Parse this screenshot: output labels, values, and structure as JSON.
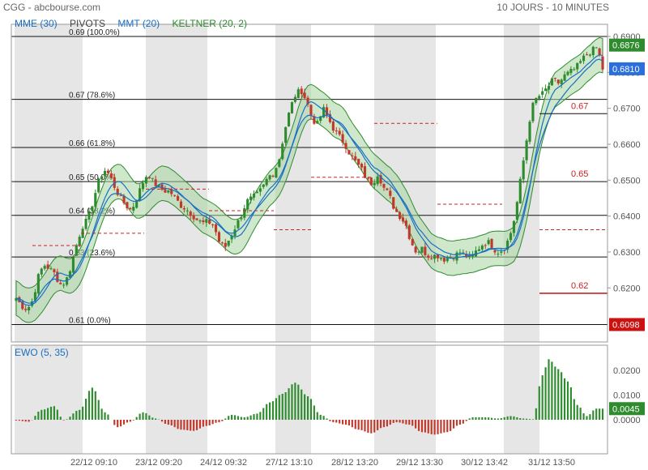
{
  "header": {
    "symbol": "CGG - abcbourse.com",
    "period": "10 JOURS - 10 MINUTES"
  },
  "legend": {
    "mme": "MME (30)",
    "pivots": "PIVOTS",
    "mmt": "MMT (20)",
    "keltner": "KELTNER (20, 2)"
  },
  "colors": {
    "mme": "#1a6fc4",
    "pivots": "#555555",
    "mmt": "#1a6fc4",
    "keltner": "#2e8b2e",
    "up": "#2e8b2e",
    "down": "#c0392b",
    "band_fill": "#a8d5a0",
    "shade": "#e6e6e6",
    "pivot": "#cc2222"
  },
  "ewo": {
    "label": "EWO (5, 35)"
  },
  "chart_data": [
    {
      "type": "candlestick",
      "ylim": [
        0.6098,
        0.69
      ],
      "y_ticks": [
        "0.6900",
        "0.6800",
        "0.6700",
        "0.6600",
        "0.6500",
        "0.6400",
        "0.6300",
        "0.6200"
      ],
      "x_ticks": [
        "22/12 09:10",
        "23/12 09:20",
        "24/12 09:32",
        "27/12 13:10",
        "28/12 13:20",
        "29/12 13:30",
        "30/12 13:42",
        "31/12 13:50"
      ],
      "fib_levels": [
        {
          "price": 0.69,
          "label": "0.69  (100.0%)"
        },
        {
          "price": 0.6725,
          "label": "0.67  (78.6%)"
        },
        {
          "price": 0.6591,
          "label": "0.66  (61.8%)"
        },
        {
          "price": 0.6496,
          "label": "0.65  (50.0%)"
        },
        {
          "price": 0.6402,
          "label": "0.64  (38.2%)"
        },
        {
          "price": 0.6286,
          "label": "0.63  (23.6%)"
        },
        {
          "price": 0.6098,
          "label": "0.61  (0.0%)"
        }
      ],
      "pivot_labels": [
        {
          "price": 0.6685,
          "label": "0.67"
        },
        {
          "price": 0.6496,
          "label": "0.65"
        },
        {
          "price": 0.6185,
          "label": "0.62"
        }
      ],
      "price_badges": [
        "0.6876",
        "0.6810",
        "0.6098"
      ],
      "close_path": [
        0.6172,
        0.615,
        0.614,
        0.6165,
        0.623,
        0.6265,
        0.6255,
        0.624,
        0.621,
        0.6215,
        0.626,
        0.632,
        0.637,
        0.639,
        0.644,
        0.6495,
        0.653,
        0.6515,
        0.648,
        0.645,
        0.643,
        0.6415,
        0.645,
        0.649,
        0.652,
        0.6495,
        0.648,
        0.647,
        0.647,
        0.645,
        0.643,
        0.642,
        0.6405,
        0.639,
        0.638,
        0.6385,
        0.6375,
        0.633,
        0.631,
        0.634,
        0.637,
        0.64,
        0.644,
        0.645,
        0.646,
        0.648,
        0.651,
        0.652,
        0.656,
        0.664,
        0.67,
        0.674,
        0.675,
        0.672,
        0.667,
        0.6655,
        0.67,
        0.667,
        0.664,
        0.662,
        0.66,
        0.657,
        0.655,
        0.653,
        0.65,
        0.649,
        0.652,
        0.648,
        0.646,
        0.642,
        0.64,
        0.638,
        0.633,
        0.63,
        0.631,
        0.629,
        0.629,
        0.629,
        0.628,
        0.6285,
        0.629,
        0.63,
        0.629,
        0.628,
        0.6305,
        0.632,
        0.633,
        0.631,
        0.63,
        0.631,
        0.634,
        0.64,
        0.65,
        0.66,
        0.67,
        0.673,
        0.674,
        0.676,
        0.678,
        0.677,
        0.679,
        0.68,
        0.681,
        0.683,
        0.685,
        0.686,
        0.687,
        0.681
      ]
    },
    {
      "type": "bar",
      "title": "EWO (5, 35)",
      "ylim": [
        -0.007,
        0.028
      ],
      "y_ticks": [
        "0.0200",
        "0.0100",
        "0.0000"
      ],
      "value_badge": "0.0045",
      "anchors": [
        [
          0,
          -0.0003
        ],
        [
          4,
          -0.0008
        ],
        [
          8,
          0.004
        ],
        [
          12,
          0.0055
        ],
        [
          15,
          -0.0002
        ],
        [
          20,
          0.004
        ],
        [
          24,
          0.013
        ],
        [
          28,
          0.003
        ],
        [
          32,
          -0.003
        ],
        [
          36,
          -0.0008
        ],
        [
          40,
          0.003
        ],
        [
          44,
          0.0005
        ],
        [
          48,
          -0.002
        ],
        [
          52,
          -0.004
        ],
        [
          56,
          -0.0045
        ],
        [
          60,
          -0.0025
        ],
        [
          64,
          -0.001
        ],
        [
          68,
          0.002
        ],
        [
          72,
          0.001
        ],
        [
          76,
          0.0025
        ],
        [
          80,
          0.007
        ],
        [
          84,
          0.0105
        ],
        [
          88,
          0.015
        ],
        [
          92,
          0.0095
        ],
        [
          96,
          0.002
        ],
        [
          100,
          -0.001
        ],
        [
          104,
          -0.002
        ],
        [
          108,
          -0.004
        ],
        [
          112,
          -0.0055
        ],
        [
          116,
          -0.003
        ],
        [
          120,
          -0.001
        ],
        [
          124,
          -0.002
        ],
        [
          128,
          -0.005
        ],
        [
          132,
          -0.006
        ],
        [
          136,
          -0.005
        ],
        [
          140,
          -0.002
        ],
        [
          144,
          0.001
        ],
        [
          148,
          0.001
        ],
        [
          152,
          0.0005
        ],
        [
          156,
          0.0015
        ],
        [
          160,
          0.0005
        ],
        [
          163,
          0.0002
        ],
        [
          166,
          0.018
        ],
        [
          168,
          0.0245
        ],
        [
          171,
          0.0205
        ],
        [
          174,
          0.0155
        ],
        [
          177,
          0.006
        ],
        [
          180,
          0.0015
        ],
        [
          183,
          0.0045
        ],
        [
          185,
          0.0045
        ]
      ]
    }
  ]
}
